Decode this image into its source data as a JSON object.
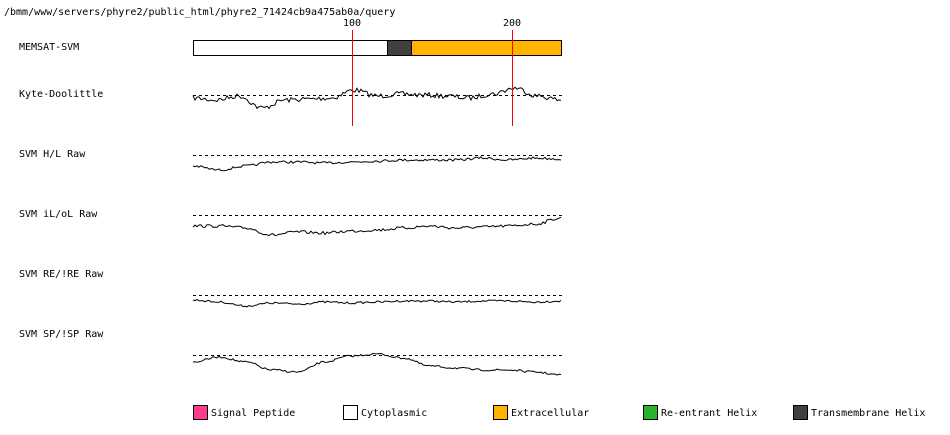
{
  "header": {
    "path": "/bmm/www/servers/phyre2/public_html/phyre2_71424cb9a475ab0a/query"
  },
  "scale": {
    "ticks": [
      "100",
      "200"
    ]
  },
  "rows": [
    {
      "label": "MEMSAT-SVM"
    },
    {
      "label": "Kyte-Doolittle"
    },
    {
      "label": "SVM H/L Raw"
    },
    {
      "label": "SVM iL/oL Raw"
    },
    {
      "label": "SVM RE/!RE Raw"
    },
    {
      "label": "SVM SP/!SP Raw"
    }
  ],
  "legend": [
    {
      "label": "Signal Peptide"
    },
    {
      "label": "Cytoplasmic"
    },
    {
      "label": "Extracellular"
    },
    {
      "label": "Re-entrant Helix"
    },
    {
      "label": "Transmembrane Helix"
    }
  ]
}
